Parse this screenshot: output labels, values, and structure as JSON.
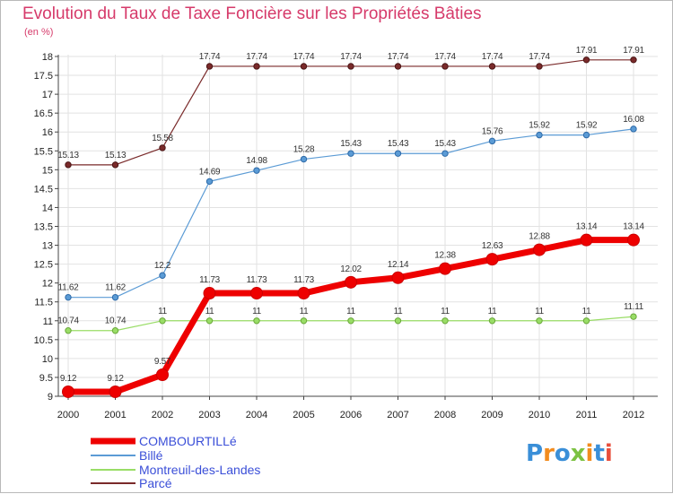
{
  "chart_data": {
    "type": "line",
    "title": "Evolution du Taux de Taxe Foncière sur les Propriétés Bâties",
    "ylabel": "(en %)",
    "xlabel": "",
    "ylim": [
      9,
      18
    ],
    "yticks": [
      "9",
      "9.5",
      "10",
      "10.5",
      "11",
      "11.5",
      "12",
      "12.5",
      "13",
      "13.5",
      "14",
      "14.5",
      "15",
      "15.5",
      "16",
      "16.5",
      "17",
      "17.5",
      "18"
    ],
    "categories": [
      "2000",
      "2001",
      "2002",
      "2003",
      "2004",
      "2005",
      "2006",
      "2007",
      "2008",
      "2009",
      "2010",
      "2011",
      "2012"
    ],
    "grid": true,
    "legend_position": "bottom-left",
    "series": [
      {
        "name": "COMBOURTILLé",
        "color": "#ee0000",
        "values": [
          9.12,
          9.12,
          9.57,
          11.73,
          11.73,
          11.73,
          12.02,
          12.14,
          12.38,
          12.63,
          12.88,
          13.14,
          13.14
        ],
        "labels": [
          "9.12",
          "9.12",
          "9.57",
          "11.73",
          "11.73",
          "11.73",
          "12.02",
          "12.14",
          "12.38",
          "12.63",
          "12.88",
          "13.14",
          "13.14"
        ]
      },
      {
        "name": "Billé",
        "color": "#5b9bd5",
        "values": [
          11.62,
          11.62,
          12.2,
          14.69,
          14.98,
          15.28,
          15.43,
          15.43,
          15.43,
          15.76,
          15.92,
          15.92,
          16.08
        ],
        "labels": [
          "11.62",
          "11.62",
          "12.2",
          "14.69",
          "14.98",
          "15.28",
          "15.43",
          "15.43",
          "15.43",
          "15.76",
          "15.92",
          "15.92",
          "16.08"
        ]
      },
      {
        "name": "Montreuil-des-Landes",
        "color": "#99dd66",
        "values": [
          10.74,
          10.74,
          11,
          11,
          11,
          11,
          11,
          11,
          11,
          11,
          11,
          11,
          11.11
        ],
        "labels": [
          "10.74",
          "10.74",
          "11",
          "11",
          "11",
          "11",
          "11",
          "11",
          "11",
          "11",
          "11",
          "11",
          "11.11"
        ]
      },
      {
        "name": "Parcé",
        "color": "#7a2a2a",
        "values": [
          15.13,
          15.13,
          15.58,
          17.74,
          17.74,
          17.74,
          17.74,
          17.74,
          17.74,
          17.74,
          17.74,
          17.91,
          17.91
        ],
        "labels": [
          "15.13",
          "15.13",
          "15.58",
          "17.74",
          "17.74",
          "17.74",
          "17.74",
          "17.74",
          "17.74",
          "17.74",
          "17.74",
          "17.91",
          "17.91"
        ]
      }
    ]
  },
  "logo": {
    "text": "Proxiti",
    "colors": [
      "#3a8fd8",
      "#f28c1e",
      "#3a8fd8",
      "#7cc242",
      "#f28c1e",
      "#3a8fd8",
      "#e84e3c"
    ]
  }
}
